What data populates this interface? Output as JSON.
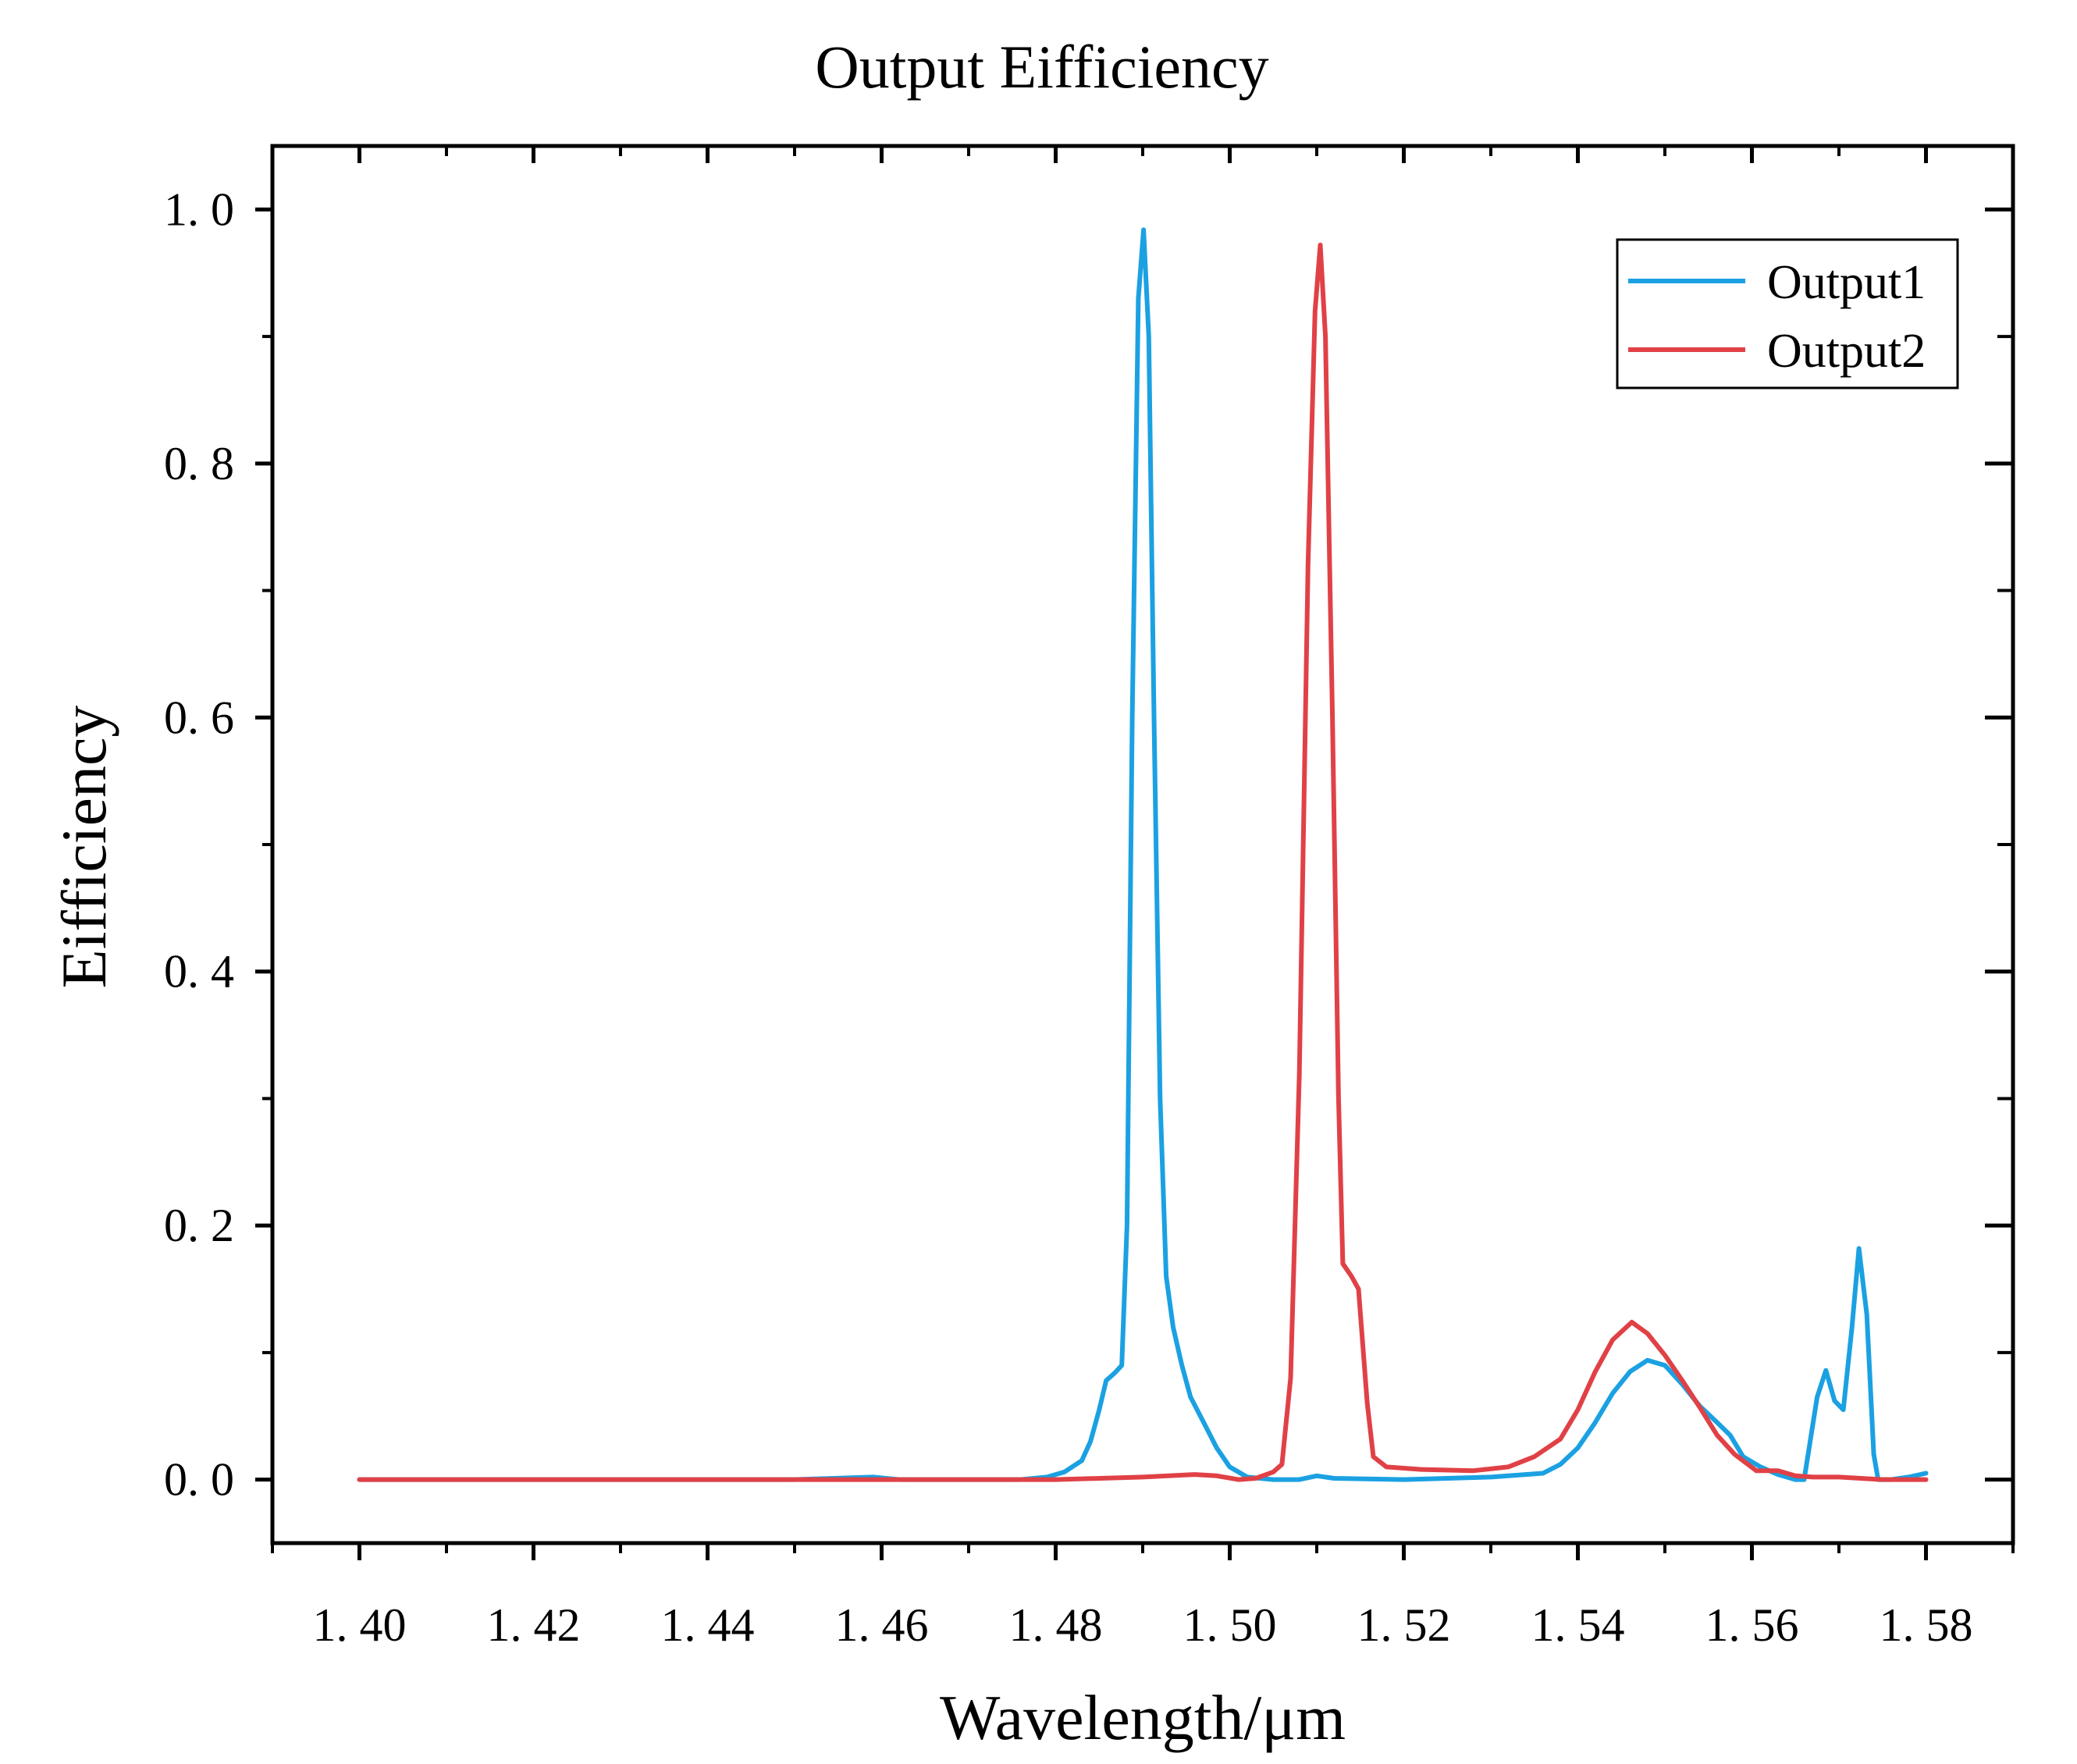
{
  "chart_data": {
    "type": "line",
    "title": "Output Eifficiency",
    "xlabel": "Wavelength/μm",
    "ylabel": "Eifficiency",
    "xlim": [
      1.39,
      1.59
    ],
    "ylim": [
      -0.05,
      1.05
    ],
    "x_ticks": [
      1.4,
      1.42,
      1.44,
      1.46,
      1.48,
      1.5,
      1.52,
      1.54,
      1.56,
      1.58
    ],
    "x_tick_labels": [
      "1. 40",
      "1. 42",
      "1. 44",
      "1. 46",
      "1. 48",
      "1. 50",
      "1. 52",
      "1. 54",
      "1. 56",
      "1. 58"
    ],
    "y_ticks": [
      0.0,
      0.2,
      0.4,
      0.6,
      0.8,
      1.0
    ],
    "y_tick_labels": [
      "0. 0",
      "0. 2",
      "0. 4",
      "0. 6",
      "0. 8",
      "1. 0"
    ],
    "grid": false,
    "legend_position": "top-right",
    "series": [
      {
        "name": "Output1",
        "color": "#1ba1e2",
        "points": [
          [
            1.4,
            0.0
          ],
          [
            1.45,
            0.0
          ],
          [
            1.459,
            0.002
          ],
          [
            1.462,
            0.0
          ],
          [
            1.476,
            0.0
          ],
          [
            1.479,
            0.002
          ],
          [
            1.481,
            0.006
          ],
          [
            1.483,
            0.015
          ],
          [
            1.484,
            0.03
          ],
          [
            1.485,
            0.055
          ],
          [
            1.4858,
            0.078
          ],
          [
            1.4868,
            0.084
          ],
          [
            1.4876,
            0.09
          ],
          [
            1.4882,
            0.2
          ],
          [
            1.4888,
            0.6
          ],
          [
            1.4895,
            0.93
          ],
          [
            1.4901,
            0.984
          ],
          [
            1.4907,
            0.9
          ],
          [
            1.4913,
            0.6
          ],
          [
            1.492,
            0.3
          ],
          [
            1.4927,
            0.16
          ],
          [
            1.4935,
            0.12
          ],
          [
            1.4945,
            0.09
          ],
          [
            1.4955,
            0.065
          ],
          [
            1.497,
            0.045
          ],
          [
            1.4985,
            0.025
          ],
          [
            1.5,
            0.01
          ],
          [
            1.502,
            0.002
          ],
          [
            1.505,
            0.0
          ],
          [
            1.508,
            0.0
          ],
          [
            1.51,
            0.003
          ],
          [
            1.512,
            0.001
          ],
          [
            1.52,
            0.0
          ],
          [
            1.53,
            0.002
          ],
          [
            1.536,
            0.005
          ],
          [
            1.538,
            0.012
          ],
          [
            1.54,
            0.025
          ],
          [
            1.542,
            0.045
          ],
          [
            1.544,
            0.068
          ],
          [
            1.546,
            0.085
          ],
          [
            1.548,
            0.094
          ],
          [
            1.55,
            0.09
          ],
          [
            1.552,
            0.075
          ],
          [
            1.554,
            0.058
          ],
          [
            1.556,
            0.045
          ],
          [
            1.5575,
            0.035
          ],
          [
            1.559,
            0.018
          ],
          [
            1.561,
            0.01
          ],
          [
            1.563,
            0.004
          ],
          [
            1.565,
            0.0
          ],
          [
            1.566,
            0.0
          ],
          [
            1.5675,
            0.065
          ],
          [
            1.5685,
            0.086
          ],
          [
            1.5695,
            0.062
          ],
          [
            1.5705,
            0.055
          ],
          [
            1.5715,
            0.12
          ],
          [
            1.5723,
            0.182
          ],
          [
            1.5732,
            0.13
          ],
          [
            1.574,
            0.02
          ],
          [
            1.5745,
            0.0
          ],
          [
            1.576,
            0.0
          ],
          [
            1.578,
            0.002
          ],
          [
            1.58,
            0.005
          ]
        ]
      },
      {
        "name": "Output2",
        "color": "#e04146",
        "points": [
          [
            1.4,
            0.0
          ],
          [
            1.48,
            0.0
          ],
          [
            1.49,
            0.002
          ],
          [
            1.496,
            0.004
          ],
          [
            1.4985,
            0.003
          ],
          [
            1.501,
            0.0
          ],
          [
            1.503,
            0.001
          ],
          [
            1.505,
            0.006
          ],
          [
            1.506,
            0.012
          ],
          [
            1.507,
            0.08
          ],
          [
            1.508,
            0.32
          ],
          [
            1.509,
            0.72
          ],
          [
            1.5098,
            0.92
          ],
          [
            1.5104,
            0.972
          ],
          [
            1.511,
            0.9
          ],
          [
            1.5118,
            0.6
          ],
          [
            1.5125,
            0.3
          ],
          [
            1.513,
            0.17
          ],
          [
            1.514,
            0.16
          ],
          [
            1.5148,
            0.15
          ],
          [
            1.5158,
            0.06
          ],
          [
            1.5165,
            0.018
          ],
          [
            1.518,
            0.01
          ],
          [
            1.522,
            0.008
          ],
          [
            1.528,
            0.007
          ],
          [
            1.532,
            0.01
          ],
          [
            1.535,
            0.018
          ],
          [
            1.538,
            0.032
          ],
          [
            1.54,
            0.055
          ],
          [
            1.542,
            0.085
          ],
          [
            1.544,
            0.11
          ],
          [
            1.5462,
            0.124
          ],
          [
            1.548,
            0.115
          ],
          [
            1.55,
            0.098
          ],
          [
            1.552,
            0.078
          ],
          [
            1.554,
            0.057
          ],
          [
            1.556,
            0.035
          ],
          [
            1.558,
            0.02
          ],
          [
            1.5605,
            0.007
          ],
          [
            1.563,
            0.007
          ],
          [
            1.565,
            0.003
          ],
          [
            1.567,
            0.002
          ],
          [
            1.57,
            0.002
          ],
          [
            1.575,
            0.0
          ],
          [
            1.58,
            0.0
          ]
        ]
      }
    ]
  }
}
